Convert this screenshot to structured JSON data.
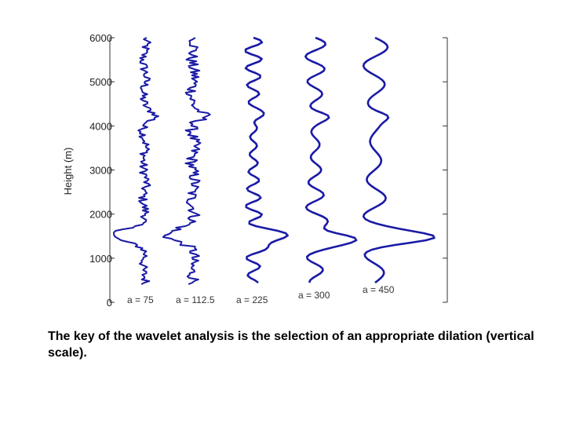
{
  "chart_data": {
    "type": "line",
    "title": "",
    "xlabel": "",
    "ylabel": "Height (m)",
    "ylim": [
      0,
      6000
    ],
    "yticks": [
      "0",
      "1000",
      "2000",
      "3000",
      "4000",
      "5000",
      "6000"
    ],
    "grid": false,
    "series": [
      {
        "name": "a = 75",
        "color": "#1a1aa6"
      },
      {
        "name": "a = 112.5",
        "color": "#1a1aa6"
      },
      {
        "name": "a = 225",
        "color": "#1a1aa6"
      },
      {
        "name": "a = 300",
        "color": "#1a1aa6"
      },
      {
        "name": "a = 450",
        "color": "#1a1aa6"
      }
    ]
  },
  "caption": "The key of the wavelet analysis is the selection of an appropriate dilation (vertical scale)."
}
